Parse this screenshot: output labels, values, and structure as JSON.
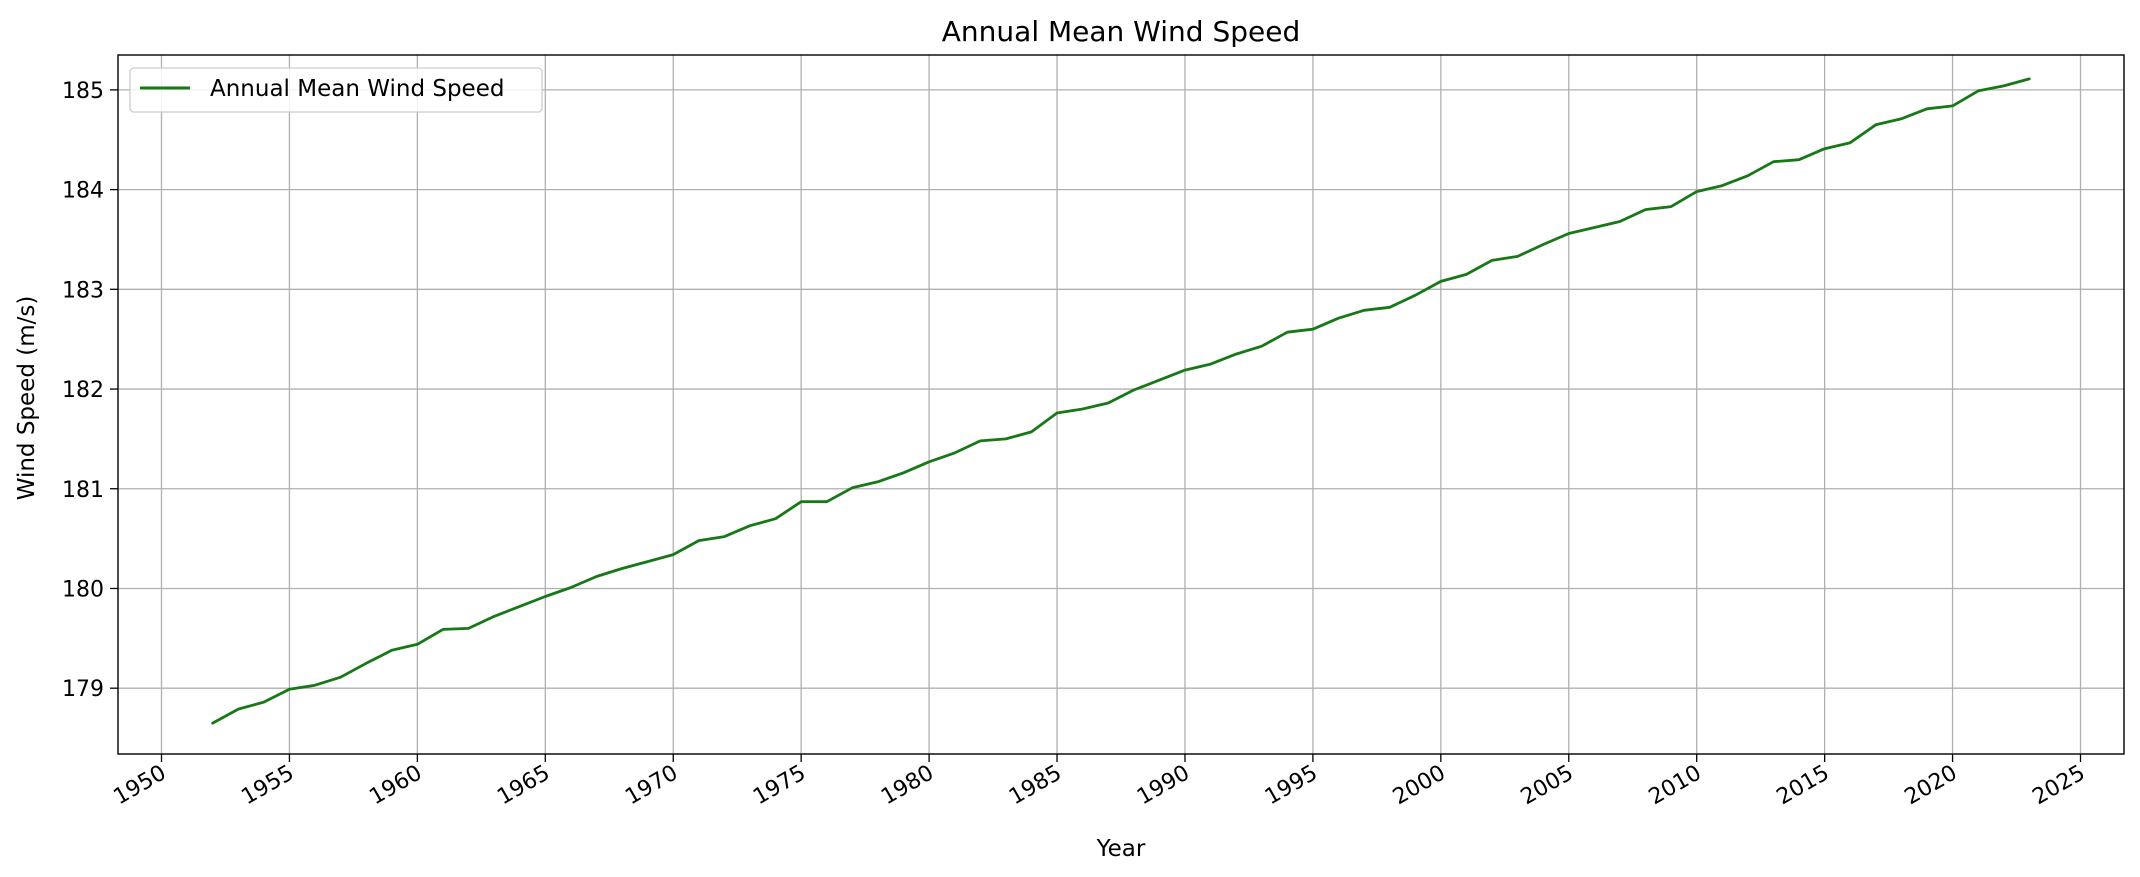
{
  "chart_data": {
    "type": "line",
    "title": "Annual Mean Wind Speed",
    "xlabel": "Year",
    "ylabel": "Wind Speed (m/s)",
    "xlim": [
      1948.3,
      2026.7
    ],
    "ylim": [
      178.34,
      185.35
    ],
    "xticks": [
      1950,
      1955,
      1960,
      1965,
      1970,
      1975,
      1980,
      1985,
      1990,
      1995,
      2000,
      2005,
      2010,
      2015,
      2020,
      2025
    ],
    "yticks": [
      179,
      180,
      181,
      182,
      183,
      184,
      185
    ],
    "grid": true,
    "legend_position": "top-left",
    "color": "#187818",
    "series": [
      {
        "name": "Annual Mean Wind Speed",
        "x": [
          1952,
          1953,
          1954,
          1955,
          1956,
          1957,
          1958,
          1959,
          1960,
          1961,
          1962,
          1963,
          1964,
          1965,
          1966,
          1967,
          1968,
          1969,
          1970,
          1971,
          1972,
          1973,
          1974,
          1975,
          1976,
          1977,
          1978,
          1979,
          1980,
          1981,
          1982,
          1983,
          1984,
          1985,
          1986,
          1987,
          1988,
          1989,
          1990,
          1991,
          1992,
          1993,
          1994,
          1995,
          1996,
          1997,
          1998,
          1999,
          2000,
          2001,
          2002,
          2003,
          2004,
          2005,
          2006,
          2007,
          2008,
          2009,
          2010,
          2011,
          2012,
          2013,
          2014,
          2015,
          2016,
          2017,
          2018,
          2019,
          2020,
          2021,
          2022,
          2023
        ],
        "y": [
          178.65,
          178.79,
          178.86,
          178.99,
          179.03,
          179.11,
          179.25,
          179.38,
          179.44,
          179.59,
          179.6,
          179.72,
          179.82,
          179.92,
          180.01,
          180.12,
          180.2,
          180.27,
          180.34,
          180.48,
          180.52,
          180.63,
          180.7,
          180.87,
          180.87,
          181.01,
          181.07,
          181.16,
          181.27,
          181.36,
          181.48,
          181.5,
          181.57,
          181.76,
          181.8,
          181.86,
          181.99,
          182.09,
          182.19,
          182.25,
          182.35,
          182.43,
          182.57,
          182.6,
          182.71,
          182.79,
          182.82,
          182.94,
          183.08,
          183.15,
          183.29,
          183.33,
          183.45,
          183.56,
          183.62,
          183.68,
          183.8,
          183.83,
          183.98,
          184.04,
          184.14,
          184.28,
          184.3,
          184.41,
          184.47,
          184.65,
          184.71,
          184.81,
          184.84,
          184.99,
          185.04,
          185.11
        ]
      }
    ]
  }
}
